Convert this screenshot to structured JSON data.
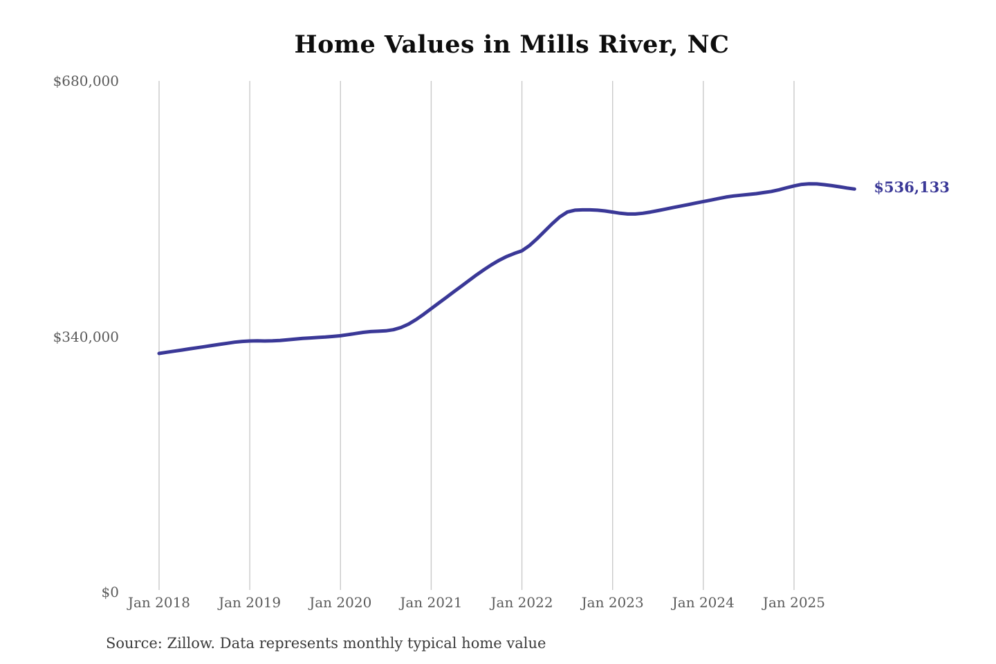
{
  "header": {
    "title": "Home Values in Mills River, NC"
  },
  "footer": {
    "source_note": "Source: Zillow. Data represents monthly typical home value"
  },
  "colors": {
    "line": "#3a3897",
    "end_label": "#3a3897",
    "grid": "#c9c9c9",
    "tick_text": "#5a5a5a",
    "title_text": "#0d0d0d",
    "source_text": "#3a3a3a",
    "background": "#ffffff"
  },
  "chart_data": {
    "type": "line",
    "title": "Home Values in Mills River, NC",
    "xlabel": "",
    "ylabel": "",
    "x_unit": "month",
    "x_start_label": "Jan 2018",
    "x_end_label": "Sep 2025",
    "x_tick_labels": [
      "Jan 2018",
      "Jan 2019",
      "Jan 2020",
      "Jan 2021",
      "Jan 2022",
      "Jan 2023",
      "Jan 2024",
      "Jan 2025"
    ],
    "y_ticks": [
      {
        "label": "$680,000",
        "value": 680000
      },
      {
        "label": "$340,000",
        "value": 340000
      },
      {
        "label": "$0",
        "value": 0
      }
    ],
    "ylim": [
      0,
      680000
    ],
    "grid": "vertical-only",
    "legend": "none",
    "end_label": "$536,133",
    "end_value": 536133,
    "series": [
      {
        "name": "Monthly typical home value",
        "values": [
          317500,
          319000,
          320500,
          322000,
          323500,
          325000,
          326500,
          328000,
          329500,
          331000,
          332500,
          333500,
          334000,
          334200,
          334000,
          334200,
          334800,
          335600,
          336500,
          337400,
          338100,
          338700,
          339300,
          340100,
          341000,
          342500,
          344000,
          345500,
          346500,
          347000,
          347500,
          349000,
          352000,
          356500,
          362500,
          369500,
          377000,
          384500,
          392000,
          399500,
          407000,
          414500,
          422000,
          429000,
          435500,
          441500,
          446500,
          450500,
          454000,
          461000,
          470000,
          480000,
          490000,
          499000,
          505500,
          508000,
          508500,
          508500,
          508000,
          507000,
          505500,
          504000,
          503000,
          503000,
          504000,
          505500,
          507500,
          509500,
          511500,
          513500,
          515500,
          517500,
          519500,
          521500,
          523500,
          525500,
          527000,
          528000,
          529000,
          530000,
          531500,
          533000,
          535200,
          537800,
          540300,
          542300,
          543200,
          543000,
          542000,
          540700,
          539200,
          537600,
          536133
        ]
      }
    ]
  }
}
